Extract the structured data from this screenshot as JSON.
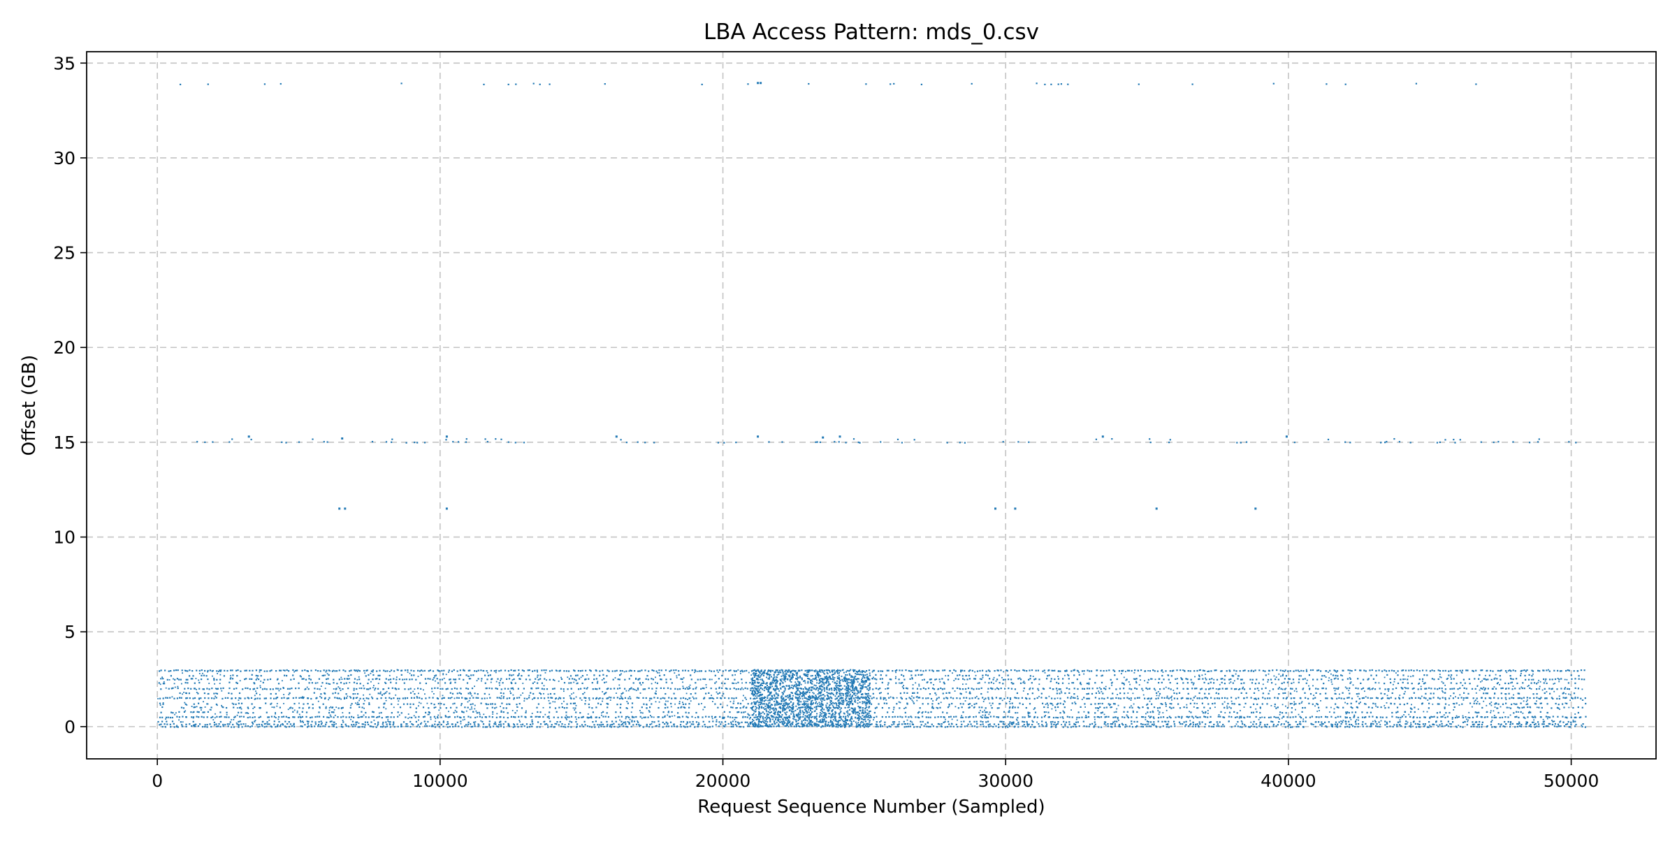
{
  "chart_data": {
    "type": "scatter",
    "title": "LBA Access Pattern: mds_0.csv",
    "xlabel": "Request Sequence Number (Sampled)",
    "ylabel": "Offset (GB)",
    "xlim": [
      -2500,
      53000
    ],
    "ylim": [
      -1.7,
      35.6
    ],
    "xticks": [
      0,
      10000,
      20000,
      30000,
      40000,
      50000
    ],
    "yticks": [
      0,
      5,
      10,
      15,
      20,
      25,
      30,
      35
    ],
    "grid": true,
    "marker_color": "#1f77b4",
    "x_range_of_samples": [
      0,
      50400
    ],
    "bands": [
      {
        "offset_gb": 0.0,
        "density": 0.9
      },
      {
        "offset_gb": 0.12,
        "density": 0.7
      },
      {
        "offset_gb": 0.25,
        "density": 0.5
      },
      {
        "offset_gb": 0.5,
        "density": 0.95
      },
      {
        "offset_gb": 0.75,
        "density": 0.35
      },
      {
        "offset_gb": 1.0,
        "density": 0.45
      },
      {
        "offset_gb": 1.2,
        "density": 0.4
      },
      {
        "offset_gb": 1.5,
        "density": 0.9
      },
      {
        "offset_gb": 1.75,
        "density": 0.35
      },
      {
        "offset_gb": 2.0,
        "density": 0.8
      },
      {
        "offset_gb": 2.3,
        "density": 0.35
      },
      {
        "offset_gb": 2.5,
        "density": 0.6
      },
      {
        "offset_gb": 2.7,
        "density": 0.25
      },
      {
        "offset_gb": 2.95,
        "density": 1.0
      },
      {
        "offset_gb": 15.0,
        "density": 0.12
      },
      {
        "offset_gb": 15.15,
        "density": 0.05
      },
      {
        "offset_gb": 33.9,
        "density": 0.06
      }
    ],
    "sparse_points": [
      {
        "x": 6400,
        "y": 11.5
      },
      {
        "x": 6600,
        "y": 11.5
      },
      {
        "x": 10200,
        "y": 11.5
      },
      {
        "x": 29600,
        "y": 11.5
      },
      {
        "x": 30300,
        "y": 11.5
      },
      {
        "x": 35300,
        "y": 11.5
      },
      {
        "x": 38800,
        "y": 11.5
      },
      {
        "x": 3200,
        "y": 15.3
      },
      {
        "x": 6500,
        "y": 15.2
      },
      {
        "x": 10200,
        "y": 15.3
      },
      {
        "x": 16200,
        "y": 15.3
      },
      {
        "x": 21200,
        "y": 15.3
      },
      {
        "x": 23500,
        "y": 15.25
      },
      {
        "x": 24100,
        "y": 15.3
      },
      {
        "x": 33400,
        "y": 15.3
      },
      {
        "x": 39900,
        "y": 15.3
      },
      {
        "x": 21200,
        "y": 33.95
      },
      {
        "x": 21300,
        "y": 33.95
      }
    ],
    "dense_region": {
      "x_start": 21000,
      "x_end": 25200,
      "y_min": 0.0,
      "y_max": 3.0
    }
  }
}
